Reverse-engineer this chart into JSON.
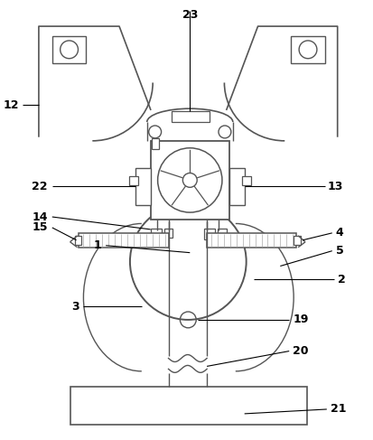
{
  "background": "#ffffff",
  "line_color": "#555555",
  "label_color": "#000000",
  "fig_width": 4.14,
  "fig_height": 4.87,
  "dpi": 100
}
